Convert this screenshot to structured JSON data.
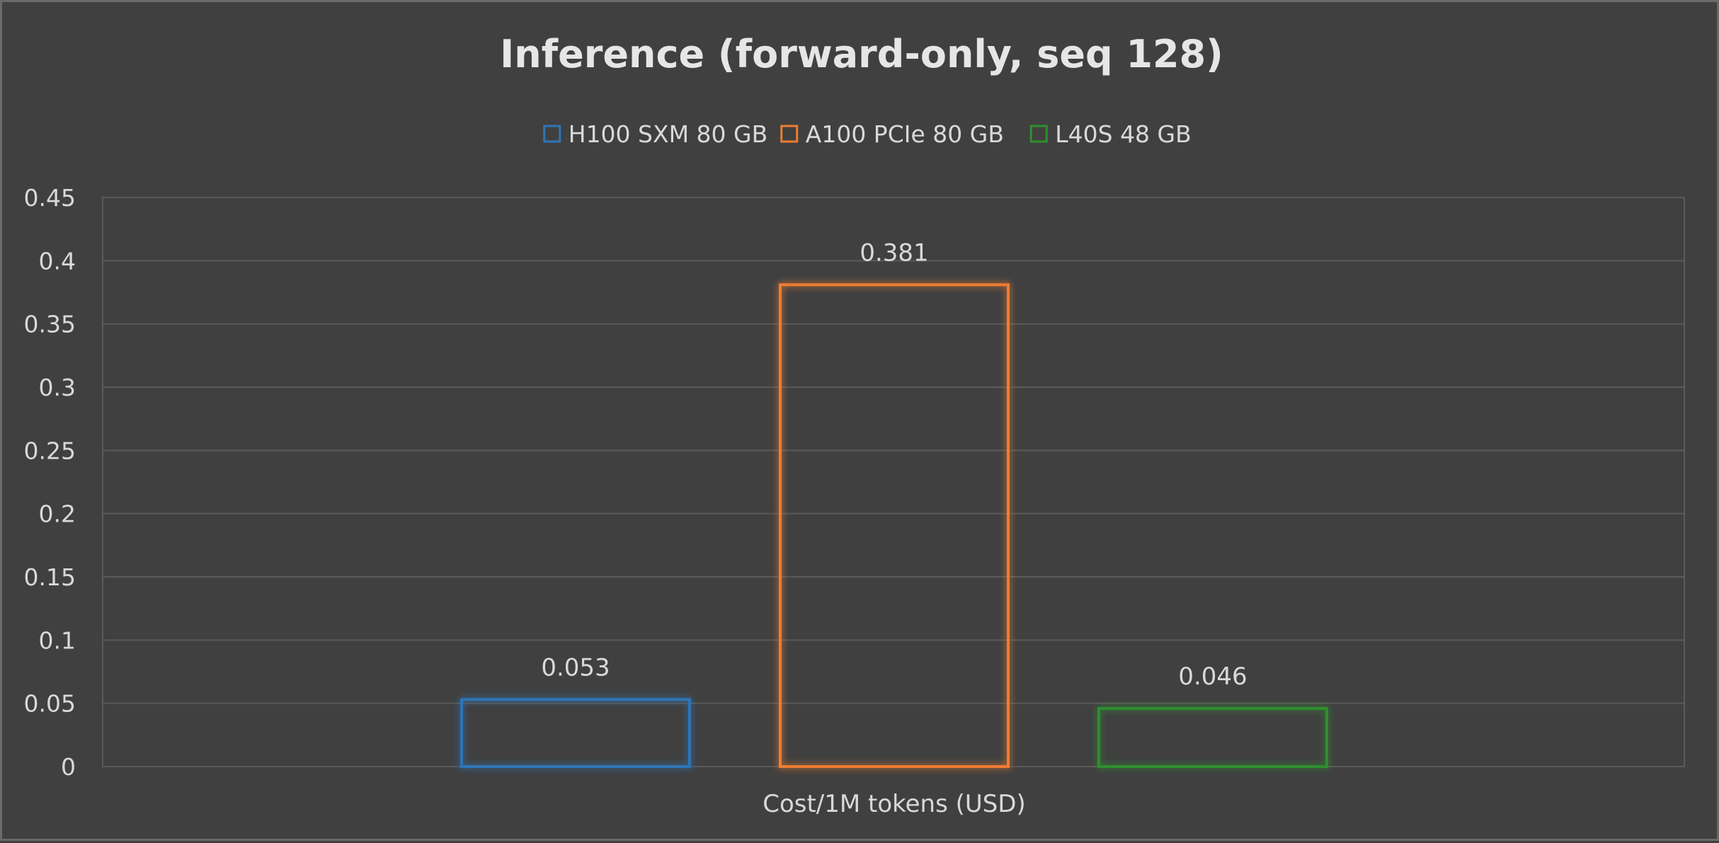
{
  "chart_data": {
    "type": "bar",
    "title": "Inference (forward-only, seq 128)",
    "xlabel": "Cost/1M tokens (USD)",
    "ylabel": "",
    "categories": [
      "Cost/1M tokens (USD)"
    ],
    "series": [
      {
        "name": "H100 SXM 80 GB",
        "values": [
          0.053
        ],
        "color": "#2e75b6"
      },
      {
        "name": "A100 PCIe 80 GB",
        "values": [
          0.381
        ],
        "color": "#ed7d31"
      },
      {
        "name": "L40S 48 GB",
        "values": [
          0.046
        ],
        "color": "#2f8f2f"
      }
    ],
    "ylim": [
      0,
      0.45
    ],
    "yticks": [
      0,
      0.05,
      0.1,
      0.15,
      0.2,
      0.25,
      0.3,
      0.35,
      0.4,
      0.45
    ],
    "ytick_labels": [
      "0",
      "0.05",
      "0.1",
      "0.15",
      "0.2",
      "0.25",
      "0.3",
      "0.35",
      "0.4",
      "0.45"
    ],
    "data_labels": [
      "0.053",
      "0.381",
      "0.046"
    ],
    "grid": true,
    "legend_position": "top"
  },
  "colors": {
    "background": "#404040",
    "gridline": "#5a5a5a",
    "text": "#d9d9d9"
  }
}
